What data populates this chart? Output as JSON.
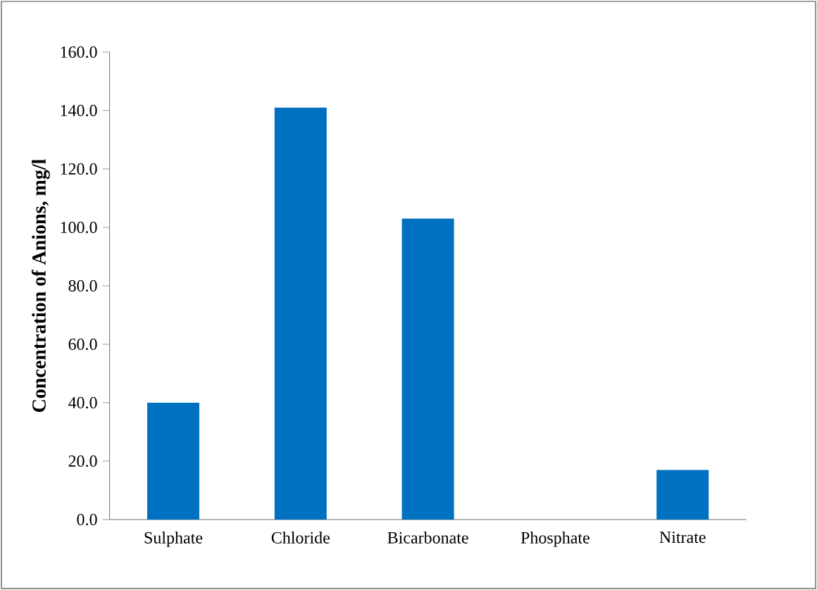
{
  "chart_data": {
    "type": "bar",
    "ylabel": "Concentration of Anions, mg/l",
    "categories": [
      "Sulphate",
      "Chloride",
      "Bicarbonate",
      "Phosphate",
      "Nitrate"
    ],
    "values": [
      40,
      141,
      103,
      0,
      17
    ],
    "color": "#0070c0",
    "ylim": [
      0,
      160
    ],
    "yticks": [
      {
        "value": 0,
        "label": "0.0"
      },
      {
        "value": 20,
        "label": "20.0"
      },
      {
        "value": 40,
        "label": "40.0"
      },
      {
        "value": 60,
        "label": "60.0"
      },
      {
        "value": 80,
        "label": "80.0"
      },
      {
        "value": 100,
        "label": "100.0"
      },
      {
        "value": 120,
        "label": "120.0"
      },
      {
        "value": 140,
        "label": "140.0"
      },
      {
        "value": 160,
        "label": "160.0"
      }
    ],
    "grid": false
  }
}
